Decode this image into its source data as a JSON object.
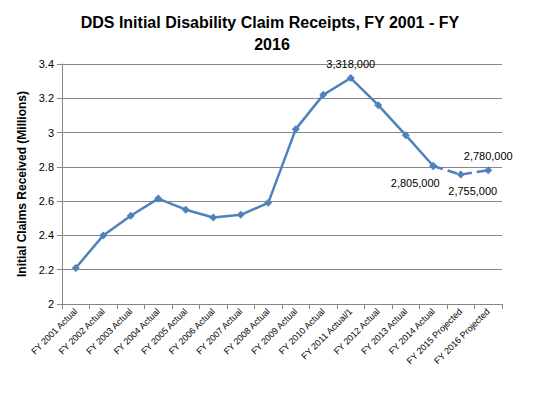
{
  "chart_data": {
    "type": "line",
    "title": "DDS Initial Disability Claim Receipts, FY 2001 - FY 2016",
    "y_label": "Initial Claims Received (Millions)",
    "categories": [
      "FY 2001 Actual",
      "FY 2002 Actual",
      "FY 2003 Actual",
      "FY 2004 Actual",
      "FY 2005 Actual",
      "FY 2006 Actual",
      "FY 2007 Actual",
      "FY 2008 Actual",
      "FY 2009 Actual",
      "FY 2010 Actual",
      "FY 2011 Actual/1",
      "FY 2012 Actual",
      "FY 2013 Actual",
      "FY 2014 Actual",
      "FY 2015 Projected",
      "FY 2016 Projected"
    ],
    "series": [
      {
        "values": [
          2.21,
          2.4,
          2.515,
          2.615,
          2.55,
          2.505,
          2.52,
          2.59,
          3.02,
          3.22,
          3.318,
          3.16,
          2.985,
          2.805,
          null,
          null
        ],
        "value_labels": [
          null,
          null,
          null,
          null,
          null,
          null,
          null,
          null,
          null,
          null,
          "3,318,000",
          null,
          null,
          "2,805,000",
          null,
          null
        ],
        "line_style": "solid"
      },
      {
        "values": [
          null,
          null,
          null,
          null,
          null,
          null,
          null,
          null,
          null,
          null,
          null,
          null,
          null,
          null,
          2.755,
          2.78
        ],
        "value_labels": [
          null,
          null,
          null,
          null,
          null,
          null,
          null,
          null,
          null,
          null,
          null,
          null,
          null,
          null,
          "2,755,000",
          "2,780,000"
        ],
        "line_style": "dashed"
      }
    ],
    "color": "#4f81bd",
    "marker": "diamond",
    "ylim": [
      2,
      3.4
    ],
    "yticks": [
      2,
      2.2,
      2.4,
      2.6,
      2.8,
      3,
      3.2,
      3.4
    ],
    "grid": true,
    "data_labels": true
  }
}
